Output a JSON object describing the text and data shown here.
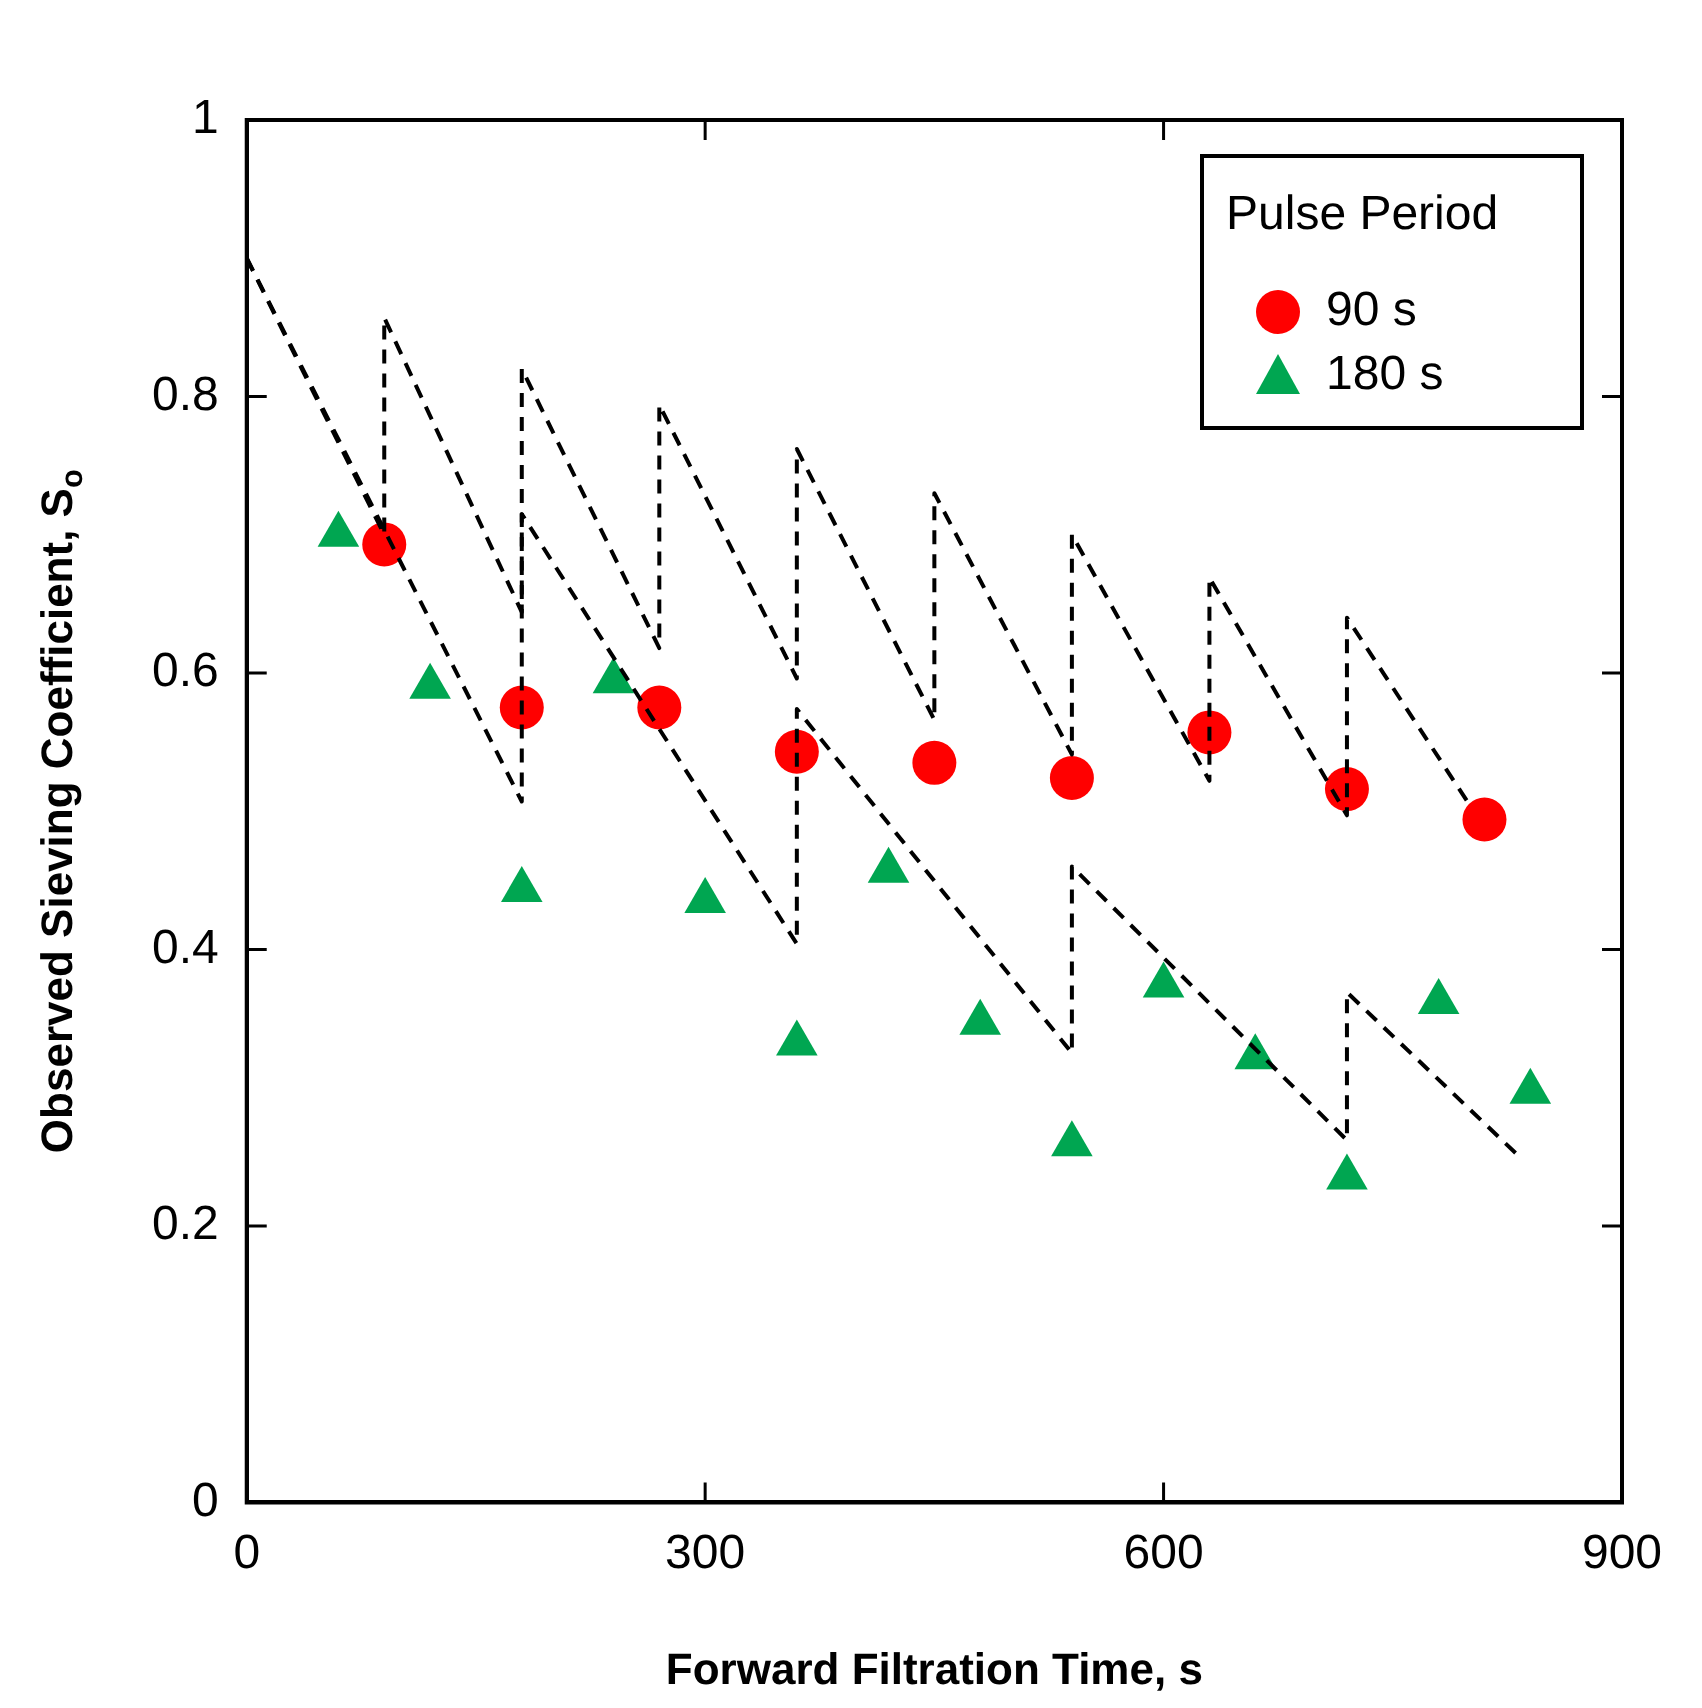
{
  "chart_data": {
    "type": "scatter",
    "xlabel": "Forward Filtration Time, s",
    "ylabel": "Observed Sieving Coefficient, S$_{o}$",
    "legend_title": "Pulse Period",
    "legend": "top right",
    "xlim": [
      0,
      900
    ],
    "xticks": [
      0,
      300,
      600,
      900
    ],
    "ylim": [
      0,
      1
    ],
    "yticks": [
      0,
      0.2,
      0.4,
      0.6,
      0.8,
      1
    ],
    "grid": false,
    "series": [
      {
        "name": "90 s",
        "color": "#ff0000",
        "marker": "circle",
        "x": [
          90,
          180,
          270,
          360,
          450,
          540,
          630,
          720,
          810
        ],
        "values": [
          0.693,
          0.575,
          0.575,
          0.543,
          0.535,
          0.524,
          0.557,
          0.516,
          0.494
        ]
      },
      {
        "name": "180 s",
        "color": "#00a651",
        "marker": "triangle",
        "x": [
          60,
          120,
          180,
          240,
          300,
          360,
          420,
          480,
          540,
          600,
          660,
          720,
          780,
          840
        ],
        "values": [
          0.7,
          0.59,
          0.443,
          0.594,
          0.435,
          0.332,
          0.457,
          0.347,
          0.259,
          0.374,
          0.322,
          0.235,
          0.362,
          0.297
        ]
      },
      {
        "type": "line",
        "color": "#000000",
        "line_style": "dashed",
        "marker": "none",
        "x": [
          0,
          90,
          90,
          180,
          180,
          270,
          270,
          360,
          360,
          450,
          450,
          540,
          540,
          630,
          630,
          720,
          720,
          800
        ],
        "values": [
          0.9,
          0.7,
          0.857,
          0.644,
          0.82,
          0.618,
          0.794,
          0.596,
          0.762,
          0.566,
          0.73,
          0.541,
          0.7,
          0.522,
          0.669,
          0.497,
          0.64,
          0.505
        ]
      },
      {
        "type": "line",
        "color": "#000000",
        "line_style": "dashed",
        "marker": "none",
        "x": [
          0,
          180,
          180,
          360,
          360,
          540,
          540,
          720,
          720,
          832
        ],
        "values": [
          0.9,
          0.507,
          0.715,
          0.404,
          0.574,
          0.325,
          0.46,
          0.262,
          0.369,
          0.251
        ]
      }
    ]
  }
}
